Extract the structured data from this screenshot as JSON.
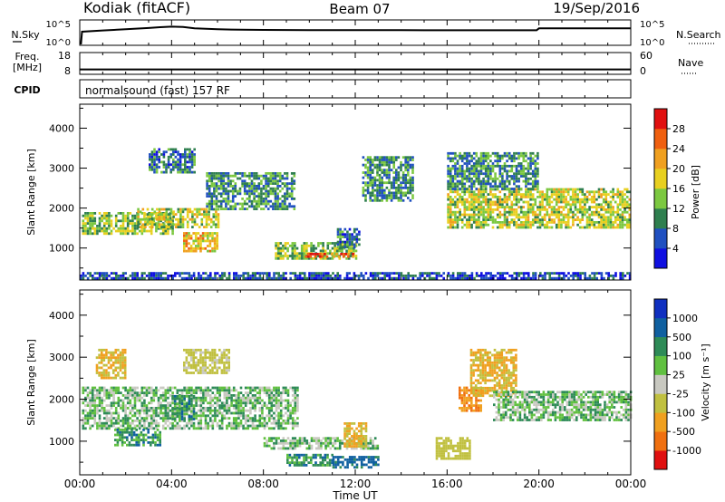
{
  "header": {
    "title": "Kodiak (fitACF)",
    "beam": "Beam 07",
    "date": "19/Sep/2016"
  },
  "nsky_panel": {
    "left_label": "N.Sky",
    "left_ticks": [
      "10^5",
      "10^0"
    ],
    "right_label": "N.Search",
    "right_ticks": [
      "10^5",
      "10^0"
    ]
  },
  "freq_panel": {
    "left_label_1": "Freq.",
    "left_label_2": "[MHz]",
    "left_ticks": [
      "18",
      "8"
    ],
    "right_label": "Nave",
    "right_ticks": [
      "60",
      "0"
    ]
  },
  "cpid_panel": {
    "label": "CPID",
    "mode_text": "normalsound (fast) 157 RF"
  },
  "time_axis": {
    "label": "Time UT",
    "ticks": [
      "00:00",
      "04:00",
      "08:00",
      "12:00",
      "16:00",
      "20:00",
      "00:00"
    ]
  },
  "range_axis": {
    "label": "Slant Range [km]",
    "ticks": [
      "1000",
      "2000",
      "3000",
      "4000"
    ]
  },
  "power_colorbar": {
    "label": "Power [dB]",
    "ticks": [
      "4",
      "8",
      "12",
      "16",
      "20",
      "24",
      "28"
    ],
    "colors": [
      "#1010e0",
      "#2050c0",
      "#2f7f4f",
      "#7cc840",
      "#e8d020",
      "#f0a020",
      "#f06010",
      "#e01010"
    ]
  },
  "velocity_colorbar": {
    "label": "Velocity [m s⁻¹]",
    "ticks": [
      "1000",
      "500",
      "100",
      "25",
      "-25",
      "-100",
      "-500",
      "-1000"
    ],
    "colors": [
      "#1030c0",
      "#1060a0",
      "#2e8b57",
      "#60c040",
      "#c8c8c0",
      "#c0c040",
      "#f0a020",
      "#f07010",
      "#e01010"
    ]
  },
  "chart_data": [
    {
      "type": "line",
      "title": "N.Sky / N.Search",
      "x_unit": "hours UT",
      "x": [
        0.05,
        0.1,
        1,
        2,
        3,
        3.5,
        4,
        4.5,
        5,
        6,
        7,
        8,
        9,
        10,
        11,
        12,
        13,
        14,
        15,
        16,
        17,
        18,
        19,
        19.9,
        20,
        21,
        22,
        23,
        24
      ],
      "series": [
        {
          "name": "N.Sky",
          "values": [
            1,
            500,
            900,
            1600,
            3000,
            4500,
            6000,
            5000,
            2500,
            1600,
            1300,
            1200,
            1150,
            1100,
            1100,
            1100,
            1050,
            1050,
            1000,
            1000,
            1000,
            1000,
            1000,
            1000,
            2500,
            2500,
            2500,
            2500,
            2500
          ]
        }
      ],
      "scale": "log",
      "ylim": [
        1,
        100000
      ]
    },
    {
      "type": "line",
      "title": "Freq. / Nave",
      "x_unit": "hours UT",
      "x": [
        0,
        24
      ],
      "series": [
        {
          "name": "Freq. [MHz]",
          "values": [
            10.0,
            10.0
          ]
        }
      ],
      "ylim": [
        8,
        18
      ]
    },
    {
      "type": "heatmap",
      "title": "Power [dB]",
      "x_unit": "hours UT",
      "y_unit": "km",
      "xlim": [
        0,
        24
      ],
      "ylim": [
        200,
        4600
      ],
      "regions": [
        {
          "x0": 0.1,
          "x1": 4.0,
          "y0": 1350,
          "y1": 1900,
          "value": 14
        },
        {
          "x0": 2.5,
          "x1": 6.0,
          "y0": 1500,
          "y1": 2000,
          "value": 16
        },
        {
          "x0": 5.5,
          "x1": 9.3,
          "y0": 2000,
          "y1": 2900,
          "value": 10
        },
        {
          "x0": 3.0,
          "x1": 5.0,
          "y0": 2900,
          "y1": 3500,
          "value": 8
        },
        {
          "x0": 4.5,
          "x1": 6.0,
          "y0": 900,
          "y1": 1400,
          "value": 20
        },
        {
          "x0": 8.5,
          "x1": 12.0,
          "y0": 750,
          "y1": 1150,
          "value": 14
        },
        {
          "x0": 9.8,
          "x1": 12.0,
          "y0": 780,
          "y1": 880,
          "value": 28
        },
        {
          "x0": 11.2,
          "x1": 12.2,
          "y0": 1050,
          "y1": 1500,
          "value": 8
        },
        {
          "x0": 12.3,
          "x1": 14.5,
          "y0": 2200,
          "y1": 3300,
          "value": 10
        },
        {
          "x0": 16.0,
          "x1": 24.0,
          "y0": 1500,
          "y1": 2500,
          "value": 16
        },
        {
          "x0": 16.0,
          "x1": 20.0,
          "y0": 2500,
          "y1": 3400,
          "value": 10
        },
        {
          "x0": 0.0,
          "x1": 24.0,
          "y0": 220,
          "y1": 400,
          "value": 6
        }
      ]
    },
    {
      "type": "heatmap",
      "title": "Velocity [m s⁻¹]",
      "x_unit": "hours UT",
      "y_unit": "km",
      "xlim": [
        0,
        24
      ],
      "ylim": [
        200,
        4600
      ],
      "regions": [
        {
          "x0": 0.1,
          "x1": 9.5,
          "y0": 1300,
          "y1": 2300,
          "value": 0
        },
        {
          "x0": 1.5,
          "x1": 3.5,
          "y0": 900,
          "y1": 1300,
          "value": 60
        },
        {
          "x0": 4.0,
          "x1": 5.0,
          "y0": 1500,
          "y1": 2100,
          "value": 80
        },
        {
          "x0": 0.7,
          "x1": 2.0,
          "y0": 2500,
          "y1": 3200,
          "value": -300
        },
        {
          "x0": 4.5,
          "x1": 6.5,
          "y0": 2600,
          "y1": 3200,
          "value": -150
        },
        {
          "x0": 8.0,
          "x1": 13.0,
          "y0": 800,
          "y1": 1100,
          "value": 0
        },
        {
          "x0": 11.5,
          "x1": 12.5,
          "y0": 900,
          "y1": 1450,
          "value": -300
        },
        {
          "x0": 9.0,
          "x1": 11.0,
          "y0": 450,
          "y1": 700,
          "value": 60
        },
        {
          "x0": 11.0,
          "x1": 13.0,
          "y0": 400,
          "y1": 650,
          "value": 150
        },
        {
          "x0": 16.5,
          "x1": 17.5,
          "y0": 1700,
          "y1": 2300,
          "value": -500
        },
        {
          "x0": 17.0,
          "x1": 19.0,
          "y0": 2100,
          "y1": 3200,
          "value": -300
        },
        {
          "x0": 18.0,
          "x1": 24.0,
          "y0": 1500,
          "y1": 2200,
          "value": 0
        },
        {
          "x0": 15.5,
          "x1": 17.0,
          "y0": 600,
          "y1": 1100,
          "value": -200
        }
      ]
    }
  ]
}
